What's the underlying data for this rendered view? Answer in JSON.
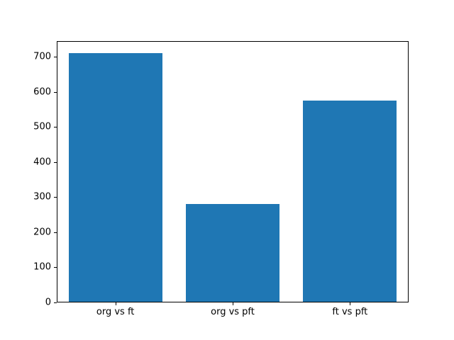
{
  "chart_data": {
    "type": "bar",
    "title": "",
    "xlabel": "",
    "ylabel": "",
    "categories": [
      "org vs ft",
      "org vs pft",
      "ft vs pft"
    ],
    "values": [
      710,
      280,
      575
    ],
    "yticks": [
      0,
      100,
      200,
      300,
      400,
      500,
      600,
      700
    ],
    "ylim": [
      0,
      745
    ],
    "bar_color": "#1f77b4",
    "grid": false,
    "legend_position": null
  }
}
